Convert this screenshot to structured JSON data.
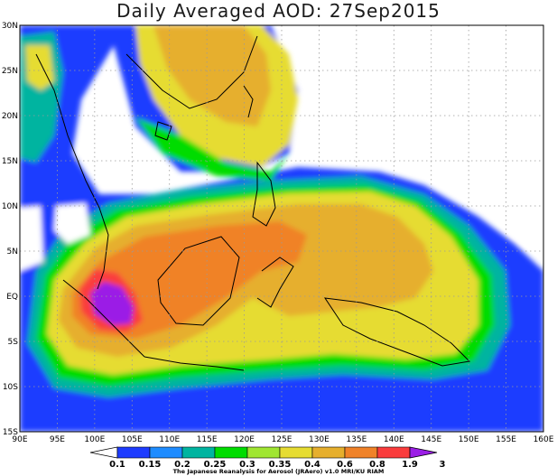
{
  "title": "Daily Averaged AOD: 27Sep2015",
  "credit": "The Japanese Reanalysis for Aerosol (JRAero) v1.0 MRI/KU RIAM",
  "lat_labels": [
    "30N",
    "25N",
    "20N",
    "15N",
    "10N",
    "5N",
    "EQ",
    "5S",
    "10S",
    "15S"
  ],
  "lon_labels": [
    "90E",
    "95E",
    "100E",
    "105E",
    "110E",
    "115E",
    "120E",
    "125E",
    "130E",
    "135E",
    "140E",
    "145E",
    "150E",
    "155E",
    "160E"
  ],
  "colorbar": {
    "labels": [
      "0.1",
      "0.15",
      "0.2",
      "0.25",
      "0.3",
      "0.35",
      "0.4",
      "0.6",
      "0.8",
      "1.9",
      "3"
    ],
    "colors": [
      "#ffffff",
      "#1e3cff",
      "#1e8cff",
      "#00b4a0",
      "#00dc00",
      "#a0e632",
      "#e6dc32",
      "#e6af2d",
      "#f08228",
      "#fa3c3c",
      "#9b1ee6"
    ]
  },
  "map": {
    "lon_range": [
      90,
      160
    ],
    "lat_range": [
      -15,
      30
    ],
    "gridlines": "dotted",
    "legend_placement": "bottom"
  }
}
